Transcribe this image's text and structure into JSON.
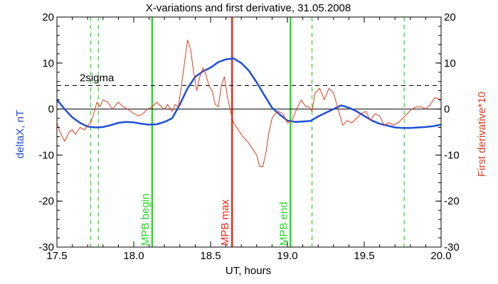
{
  "chart_data": {
    "type": "line",
    "title": "X-variations and first derivative, 31.05.2008",
    "xlabel": "UT, hours",
    "ylabel_left": "deltaX, nT",
    "ylabel_right": "First derivative*10",
    "xlim": [
      17.5,
      20.0
    ],
    "ylim": [
      -30,
      20
    ],
    "x_ticks": [
      "17.5",
      "18.0",
      "18.5",
      "19.0",
      "19.5",
      "20.0"
    ],
    "y_ticks": [
      "-30",
      "-20",
      "-10",
      "0",
      "10",
      "20"
    ],
    "colors": {
      "deltaX": "#1f4fd8",
      "derivative": "#e23b1e",
      "mpb_bound": "#22dd22",
      "mpb_max": "#ee2a1a"
    },
    "reference_lines": [
      {
        "label": "2sigma",
        "y": 5.1,
        "style": "dashed"
      },
      {
        "label": "",
        "y": 0,
        "style": "solid"
      }
    ],
    "vertical_lines": [
      {
        "label": "MPB begin",
        "x": 18.12,
        "color": "#22dd22",
        "style": "solid"
      },
      {
        "label": "MPB max",
        "x": 18.64,
        "color": "#ee2a1a",
        "style": "solid"
      },
      {
        "label": "MPB end",
        "x": 19.02,
        "color": "#22dd22",
        "style": "solid"
      },
      {
        "label": "",
        "x": 17.72,
        "color": "#22dd22",
        "style": "dashed"
      },
      {
        "label": "",
        "x": 17.77,
        "color": "#22dd22",
        "style": "dashed"
      },
      {
        "label": "",
        "x": 19.16,
        "color": "#22dd22",
        "style": "dashed"
      },
      {
        "label": "",
        "x": 19.76,
        "color": "#22dd22",
        "style": "dashed"
      }
    ],
    "series": [
      {
        "key": "deltaX",
        "x": [
          17.5,
          17.55,
          17.6,
          17.65,
          17.7,
          17.75,
          17.8,
          17.85,
          17.9,
          17.95,
          18.0,
          18.05,
          18.1,
          18.15,
          18.2,
          18.25,
          18.3,
          18.35,
          18.4,
          18.45,
          18.5,
          18.55,
          18.6,
          18.65,
          18.7,
          18.75,
          18.8,
          18.85,
          18.9,
          18.95,
          19.0,
          19.05,
          19.1,
          19.15,
          19.2,
          19.25,
          19.3,
          19.35,
          19.4,
          19.45,
          19.5,
          19.55,
          19.6,
          19.65,
          19.7,
          19.75,
          19.8,
          19.85,
          19.9,
          19.95,
          20.0
        ],
        "values": [
          2.0,
          0.0,
          -1.8,
          -3.0,
          -3.8,
          -4.0,
          -3.9,
          -3.5,
          -3.0,
          -2.8,
          -2.9,
          -3.2,
          -3.4,
          -3.3,
          -2.8,
          -2.0,
          1.0,
          4.5,
          7.0,
          8.2,
          9.0,
          10.2,
          10.8,
          11.0,
          10.0,
          8.3,
          5.8,
          3.0,
          0.3,
          -1.2,
          -2.5,
          -2.8,
          -2.7,
          -2.6,
          -1.6,
          -0.8,
          0.0,
          0.8,
          0.3,
          -0.5,
          -1.5,
          -2.5,
          -3.2,
          -3.6,
          -4.0,
          -4.1,
          -4.1,
          -4.0,
          -3.9,
          -3.7,
          -3.4
        ]
      },
      {
        "key": "derivative",
        "x": [
          17.5,
          17.52,
          17.55,
          17.58,
          17.6,
          17.62,
          17.65,
          17.68,
          17.7,
          17.72,
          17.74,
          17.76,
          17.78,
          17.8,
          17.83,
          17.86,
          17.9,
          17.93,
          17.96,
          18.0,
          18.03,
          18.06,
          18.09,
          18.12,
          18.15,
          18.18,
          18.2,
          18.22,
          18.25,
          18.27,
          18.29,
          18.31,
          18.33,
          18.35,
          18.37,
          18.39,
          18.41,
          18.43,
          18.45,
          18.47,
          18.49,
          18.51,
          18.53,
          18.55,
          18.57,
          18.59,
          18.61,
          18.63,
          18.65,
          18.68,
          18.71,
          18.74,
          18.77,
          18.8,
          18.82,
          18.84,
          18.86,
          18.88,
          18.9,
          18.92,
          18.94,
          18.97,
          19.0,
          19.03,
          19.06,
          19.09,
          19.12,
          19.14,
          19.16,
          19.18,
          19.21,
          19.24,
          19.27,
          19.3,
          19.33,
          19.36,
          19.39,
          19.42,
          19.45,
          19.48,
          19.51,
          19.54,
          19.57,
          19.6,
          19.63,
          19.66,
          19.69,
          19.72,
          19.75,
          19.78,
          19.81,
          19.84,
          19.87,
          19.9,
          19.93,
          19.96,
          20.0
        ],
        "values": [
          -3.0,
          -5.0,
          -7.0,
          -5.0,
          -4.5,
          -5.5,
          -4.0,
          -4.5,
          -3.5,
          -3.0,
          -1.0,
          1.5,
          0.5,
          2.0,
          1.5,
          0.0,
          1.5,
          0.5,
          0.0,
          -1.0,
          -1.5,
          -1.0,
          0.0,
          0.5,
          1.5,
          0.5,
          0.0,
          1.0,
          -0.5,
          1.0,
          0.5,
          5.0,
          10.0,
          15.0,
          13.0,
          8.0,
          4.0,
          7.0,
          9.0,
          7.5,
          5.0,
          4.0,
          1.0,
          0.5,
          5.0,
          7.0,
          2.5,
          -0.5,
          -3.0,
          -4.5,
          -6.0,
          -7.0,
          -8.5,
          -10.0,
          -12.5,
          -12.5,
          -9.5,
          -5.0,
          -2.0,
          -1.0,
          -0.5,
          -1.0,
          -3.0,
          -2.5,
          0.0,
          2.0,
          0.5,
          0.5,
          -0.5,
          3.5,
          4.5,
          2.0,
          4.5,
          3.5,
          0.0,
          -3.5,
          -2.5,
          -3.0,
          -2.0,
          -1.0,
          -0.5,
          -2.5,
          -1.0,
          -1.5,
          -3.5,
          -3.0,
          -3.5,
          -3.0,
          -2.0,
          -1.0,
          0.0,
          0.5,
          0.5,
          0.0,
          1.0,
          2.5,
          2.0
        ]
      }
    ]
  }
}
